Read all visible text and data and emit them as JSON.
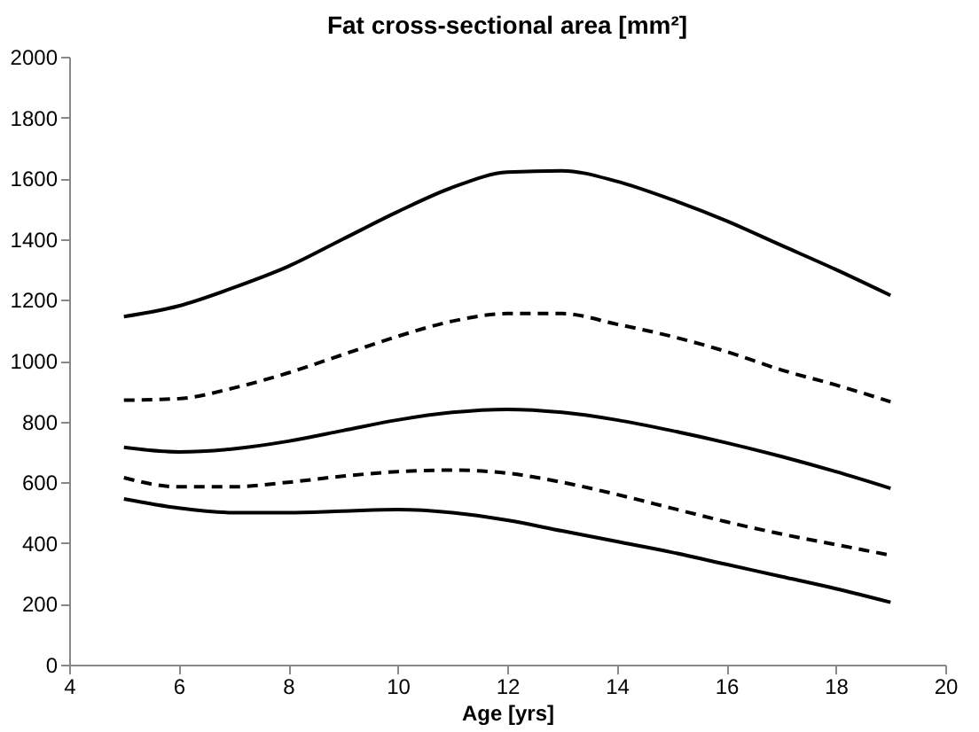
{
  "chart_data": {
    "type": "line",
    "title": "Fat cross-sectional area [mm²]",
    "xlabel": "Age [yrs]",
    "x": [
      5,
      6,
      7,
      8,
      9,
      10,
      11,
      12,
      13,
      14,
      15,
      16,
      17,
      18,
      19
    ],
    "series": [
      {
        "color": "#000000",
        "line_style": "solid",
        "values": [
          1145,
          1180,
          1240,
          1310,
          1400,
          1490,
          1570,
          1620,
          1625,
          1590,
          1530,
          1460,
          1380,
          1300,
          1215
        ]
      },
      {
        "color": "#000000",
        "line_style": "dashed",
        "values": [
          870,
          875,
          910,
          960,
          1020,
          1080,
          1130,
          1155,
          1155,
          1120,
          1080,
          1030,
          970,
          920,
          865
        ]
      },
      {
        "color": "#000000",
        "line_style": "solid",
        "values": [
          715,
          700,
          710,
          735,
          770,
          805,
          830,
          840,
          830,
          805,
          770,
          730,
          685,
          635,
          580
        ]
      },
      {
        "color": "#000000",
        "line_style": "dashed",
        "values": [
          615,
          585,
          585,
          600,
          620,
          635,
          640,
          630,
          600,
          560,
          515,
          470,
          430,
          395,
          360
        ]
      },
      {
        "color": "#000000",
        "line_style": "solid",
        "values": [
          545,
          515,
          500,
          500,
          505,
          510,
          500,
          475,
          440,
          405,
          370,
          330,
          290,
          250,
          205
        ]
      }
    ],
    "xlim": [
      4,
      20
    ],
    "xticks": [
      4,
      6,
      8,
      10,
      12,
      14,
      16,
      18,
      20
    ],
    "ylim": [
      0,
      2000
    ],
    "yticks": [
      0,
      200,
      400,
      600,
      800,
      1000,
      1200,
      1400,
      1600,
      1800,
      2000
    ],
    "grid": false,
    "marker": "none"
  }
}
